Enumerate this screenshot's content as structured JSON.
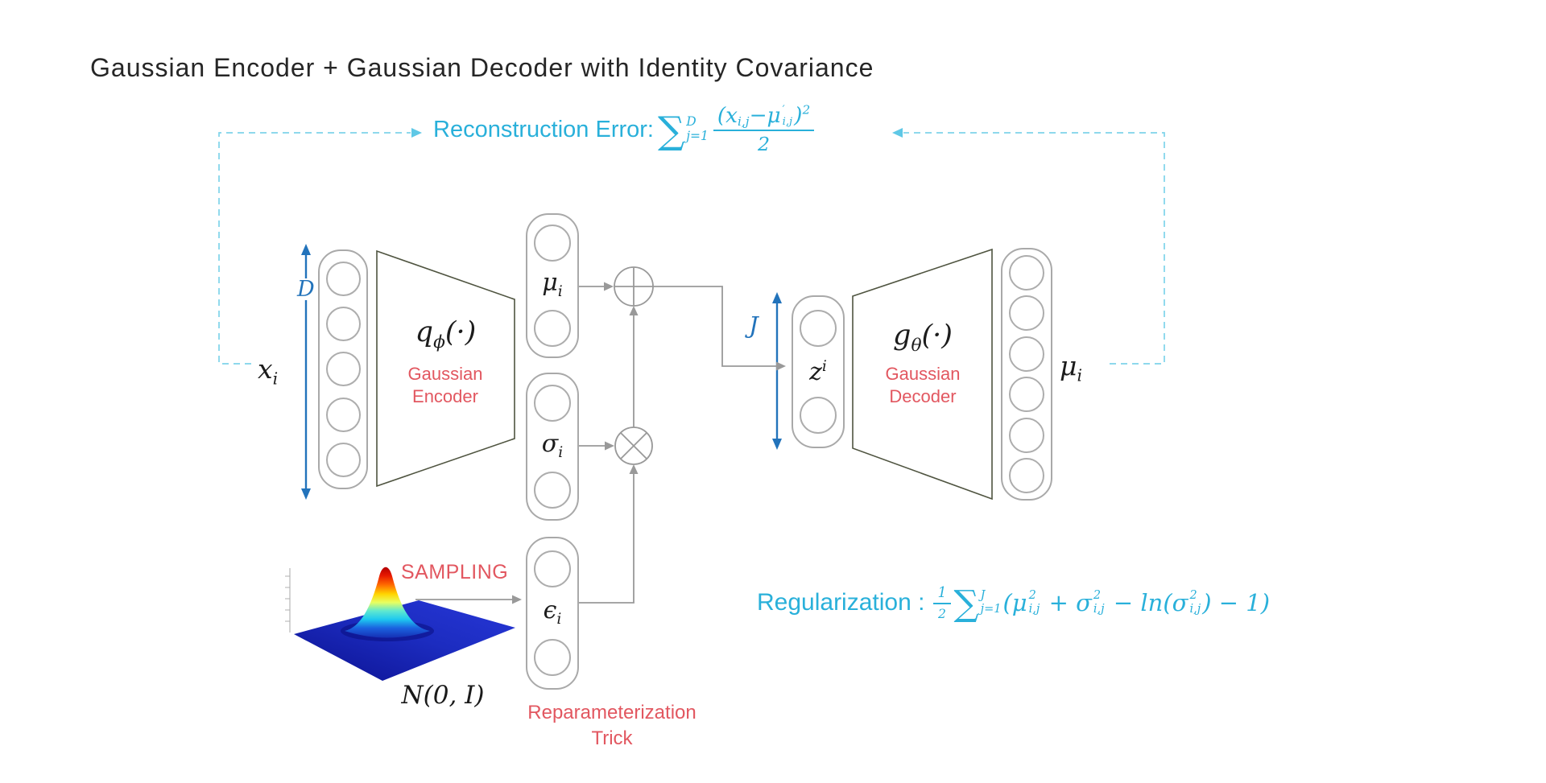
{
  "slide": {
    "title": "Gaussian Encoder + Gaussian Decoder with Identity Covariance"
  },
  "colors": {
    "formula_cyan": "#29b0da",
    "dash_cyan": "#7ed3ea",
    "arrow_blue": "#2273bb",
    "label_red": "#e25760",
    "connector_gray": "#999999",
    "trapezoid_olive": "#4f5440"
  },
  "formulas": {
    "reconstruction_label": "Reconstruction Error:",
    "reconstruction_math": [
      {
        "big": "∑"
      },
      {
        "sup": "D",
        "sub": "j=1"
      },
      {
        "frac": [
          [
            "(x",
            {
              "sub": "i,j"
            },
            "−μ",
            {
              "sup": "′",
              "sub": "i,j"
            },
            ")",
            {
              "sup": "2"
            }
          ],
          [
            "2"
          ]
        ]
      }
    ],
    "regularization_label": "Regularization :",
    "regularization_math": [
      {
        "frac": [
          [
            "1"
          ],
          [
            "2"
          ]
        ]
      },
      {
        "big": "∑"
      },
      {
        "sup": "J",
        "sub": "j=1"
      },
      "(μ",
      {
        "sup": "2",
        "sub": "i,j"
      },
      " + σ",
      {
        "sup": "2",
        "sub": "i,j"
      },
      " − ln(σ",
      {
        "sup": "2",
        "sub": "i,j"
      },
      ") − 1)"
    ]
  },
  "encoder": {
    "function": [
      "q",
      {
        "sub": "ϕ"
      },
      "(·)"
    ],
    "sublabel": "Gaussian\nEncoder"
  },
  "decoder": {
    "function": [
      "g",
      {
        "sub": "θ"
      },
      "(·)"
    ],
    "sublabel": "Gaussian\nDecoder"
  },
  "labels": {
    "input": [
      "x",
      {
        "sub": "i"
      }
    ],
    "input_dim": "D",
    "latent_dim": "J",
    "mu_enc": [
      "μ",
      {
        "sub": "i"
      }
    ],
    "sigma_enc": [
      "σ",
      {
        "sub": "i"
      }
    ],
    "epsilon": [
      "ϵ",
      {
        "sub": "i"
      }
    ],
    "z": [
      "z",
      {
        "sup": "i"
      }
    ],
    "mu_out": [
      "μ",
      {
        "sub": "i"
      }
    ],
    "sampling": "SAMPLING",
    "normal_dist": "N(0, I)",
    "reparam": "Reparameterization\nTrick"
  },
  "layers": {
    "input_nodes": 5,
    "output_nodes": 6
  }
}
